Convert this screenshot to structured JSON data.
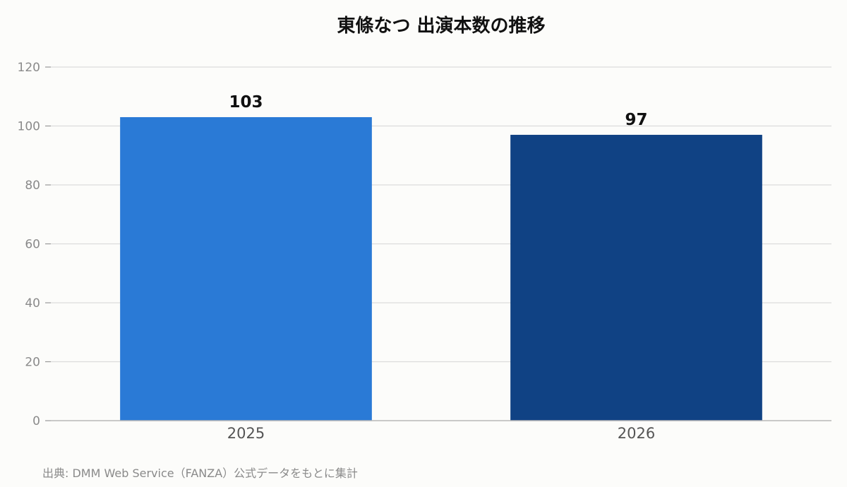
{
  "chart_data": {
    "type": "bar",
    "title": "東條なつ 出演本数の推移",
    "categories": [
      "2025",
      "2026"
    ],
    "values": [
      103,
      97
    ],
    "bar_colors": [
      "#2a7ad6",
      "#104284"
    ],
    "ylim": [
      0,
      120
    ],
    "yticks": [
      0,
      20,
      40,
      60,
      80,
      100,
      120
    ],
    "xlabel": "",
    "ylabel": "",
    "grid": true,
    "legend": "none"
  },
  "footer": {
    "source": "出典: DMM Web Service（FANZA）公式データをもとに集計"
  }
}
